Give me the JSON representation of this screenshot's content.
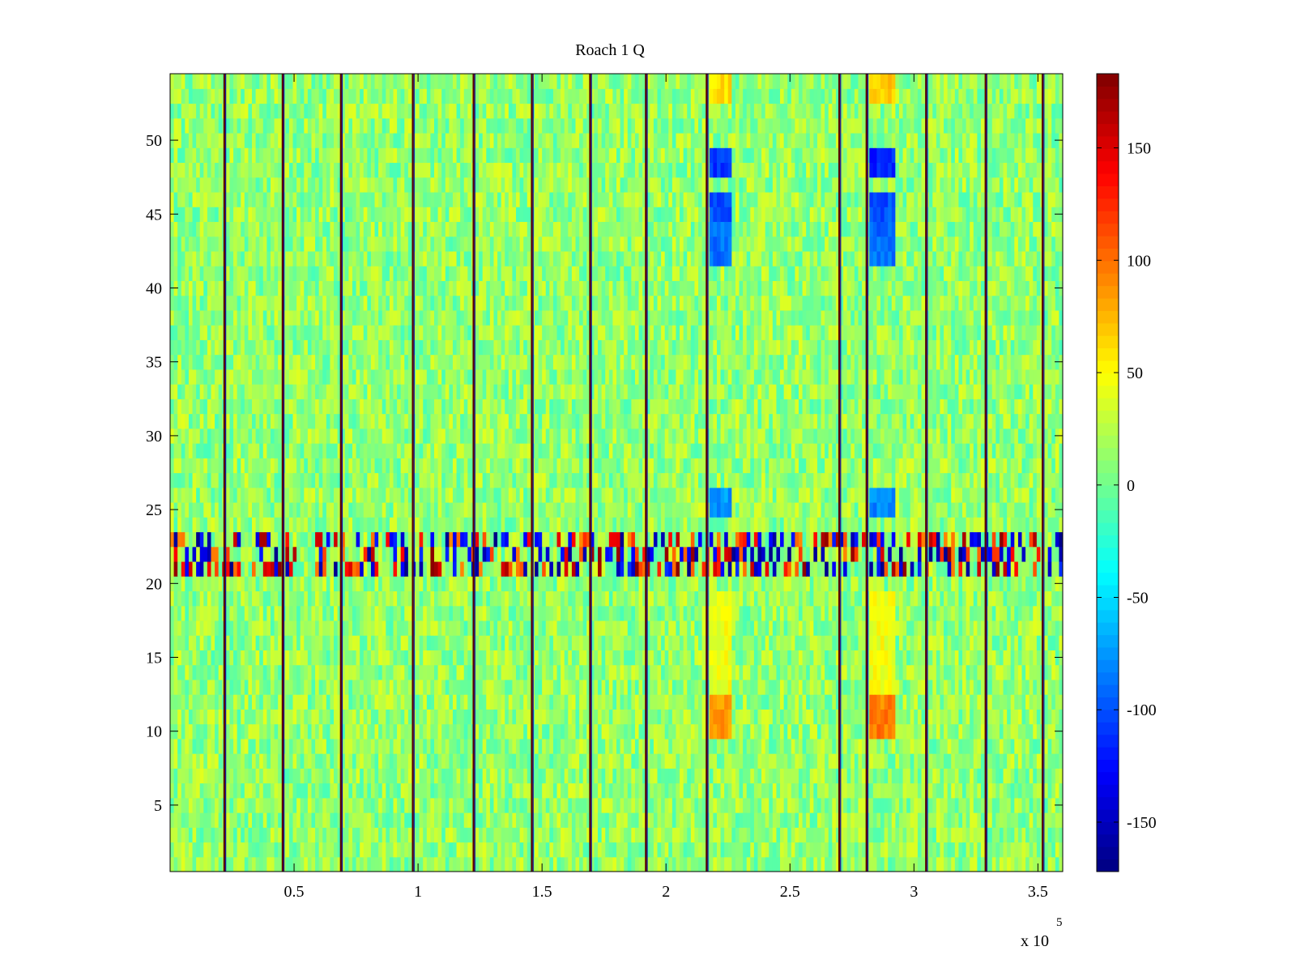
{
  "chart_data": {
    "type": "heatmap",
    "title": "Roach 1 Q",
    "xlabel": "",
    "ylabel": "",
    "x_exponent_label": "x 10",
    "x_exponent": "5",
    "xlim": [
      0,
      3.6
    ],
    "ylim": [
      0.5,
      54.5
    ],
    "x_ticks": [
      {
        "value": 0.5,
        "label": "0.5"
      },
      {
        "value": 1.0,
        "label": "1"
      },
      {
        "value": 1.5,
        "label": "1.5"
      },
      {
        "value": 2.0,
        "label": "2"
      },
      {
        "value": 2.5,
        "label": "2.5"
      },
      {
        "value": 3.0,
        "label": "3"
      },
      {
        "value": 3.5,
        "label": "3.5"
      }
    ],
    "y_ticks": [
      {
        "value": 5,
        "label": "5"
      },
      {
        "value": 10,
        "label": "10"
      },
      {
        "value": 15,
        "label": "15"
      },
      {
        "value": 20,
        "label": "20"
      },
      {
        "value": 25,
        "label": "25"
      },
      {
        "value": 30,
        "label": "30"
      },
      {
        "value": 35,
        "label": "35"
      },
      {
        "value": 40,
        "label": "40"
      },
      {
        "value": 45,
        "label": "45"
      },
      {
        "value": 50,
        "label": "50"
      }
    ],
    "colorbar": {
      "colormap": "jet",
      "clim": [
        -172,
        183
      ],
      "ticks": [
        {
          "value": -150,
          "label": "-150"
        },
        {
          "value": -100,
          "label": "-100"
        },
        {
          "value": -50,
          "label": "-50"
        },
        {
          "value": 0,
          "label": "0"
        },
        {
          "value": 50,
          "label": "50"
        },
        {
          "value": 100,
          "label": "100"
        },
        {
          "value": 150,
          "label": "150"
        }
      ]
    },
    "rows": 54,
    "background_value_range": [
      -15,
      40
    ],
    "boundary_lines_x": [
      0.22,
      0.455,
      0.69,
      0.98,
      1.225,
      1.46,
      1.695,
      1.92,
      2.165,
      2.7,
      2.81,
      3.05,
      3.29,
      3.52
    ],
    "hot_row_band": {
      "rows": [
        21,
        23
      ],
      "value_range": [
        -170,
        180
      ]
    },
    "anomaly_columns": [
      {
        "x_range": [
          2.17,
          2.27
        ],
        "segments": [
          {
            "rows": [
              53,
              54
            ],
            "value": 60
          },
          {
            "rows": [
              48,
              49
            ],
            "value": -110
          },
          {
            "rows": [
              45,
              46
            ],
            "value": -100
          },
          {
            "rows": [
              42,
              44
            ],
            "value": -90
          },
          {
            "rows": [
              25,
              26
            ],
            "value": -75
          },
          {
            "rows": [
              13,
              19
            ],
            "value": 45
          },
          {
            "rows": [
              10,
              12
            ],
            "value": 85
          }
        ]
      },
      {
        "x_range": [
          2.82,
          2.92
        ],
        "segments": [
          {
            "rows": [
              53,
              54
            ],
            "value": 70
          },
          {
            "rows": [
              48,
              49
            ],
            "value": -115
          },
          {
            "rows": [
              45,
              46
            ],
            "value": -100
          },
          {
            "rows": [
              42,
              44
            ],
            "value": -90
          },
          {
            "rows": [
              25,
              26
            ],
            "value": -80
          },
          {
            "rows": [
              13,
              19
            ],
            "value": 45
          },
          {
            "rows": [
              10,
              12
            ],
            "value": 95
          }
        ]
      }
    ]
  }
}
